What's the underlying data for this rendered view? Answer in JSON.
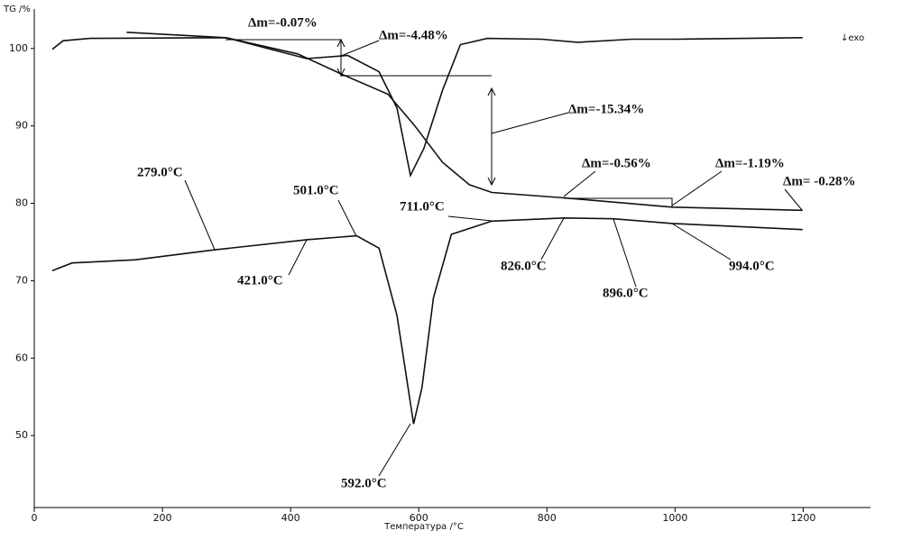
{
  "chart_data": {
    "type": "line",
    "y_label": "TG /%",
    "x_label": "Температура /°C",
    "exo_label": "↓exo",
    "xlim": [
      0,
      1305
    ],
    "ylim": [
      40.7,
      105.1
    ],
    "xticks": [
      0,
      200,
      400,
      600,
      800,
      1000,
      1200
    ],
    "yticks": [
      50,
      60,
      70,
      80,
      90,
      100
    ],
    "series": [
      {
        "color": "#111111",
        "x": [
          144,
          299,
          411,
          482,
          552,
          594,
          637,
          679,
          714,
          827,
          996,
          1199
        ],
        "values": [
          102.1,
          101.4,
          99.3,
          96.6,
          94.1,
          90.0,
          85.3,
          82.4,
          81.4,
          80.7,
          79.5,
          79.1
        ]
      },
      {
        "color": "#111111",
        "x": [
          28,
          45,
          87,
          299,
          425,
          489,
          538,
          566,
          587,
          608,
          637,
          665,
          707,
          792,
          848,
          932,
          1003,
          1199
        ],
        "values": [
          99.9,
          101.0,
          101.3,
          101.4,
          98.7,
          99.1,
          97.0,
          92.3,
          83.6,
          87.1,
          94.6,
          100.5,
          101.3,
          101.2,
          100.8,
          101.2,
          101.2,
          101.4
        ]
      },
      {
        "color": "#111111",
        "x": [
          28,
          59,
          158,
          282,
          425,
          503,
          538,
          566,
          592,
          605,
          623,
          651,
          714,
          827,
          904,
          996,
          1199
        ],
        "values": [
          71.3,
          72.3,
          72.7,
          74.0,
          75.3,
          75.8,
          74.2,
          65.5,
          51.5,
          56.2,
          67.8,
          76.0,
          77.7,
          78.1,
          78.0,
          77.4,
          76.6
        ]
      }
    ],
    "annotations": [
      "Δm=-0.07%",
      "Δm=-4.48%",
      "Δm=-15.34%",
      "Δm=-0.56%",
      "Δm=-1.19%",
      "Δm= -0.28%",
      "279.0°C",
      "501.0°C",
      "711.0°C",
      "421.0°C",
      "826.0°C",
      "896.0°C",
      "994.0°C",
      "592.0°C"
    ]
  }
}
